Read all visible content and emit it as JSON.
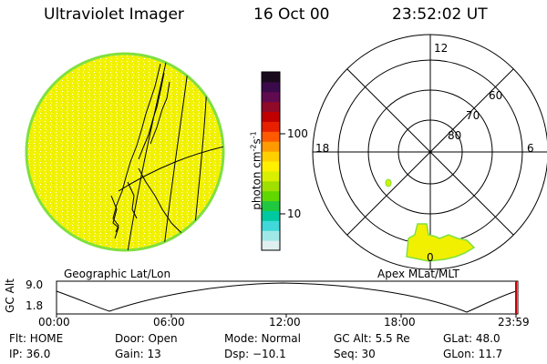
{
  "header": {
    "title": "Ultraviolet Imager",
    "date": "16 Oct 00",
    "time": "23:52:02 UT"
  },
  "colorbar": {
    "unit_label": "photon cm",
    "unit_exp1": "-2",
    "unit_s": "s",
    "unit_exp2": "-1",
    "ticks": [
      "100",
      "10"
    ],
    "colors": [
      "#1a0a1e",
      "#3a0a4a",
      "#600a50",
      "#900a2a",
      "#c00000",
      "#e82000",
      "#ff5a00",
      "#ff9a00",
      "#ffd000",
      "#fff000",
      "#d8f000",
      "#a0e000",
      "#60d800",
      "#20c840",
      "#00c8a0",
      "#40d8d8",
      "#a0e8e8",
      "#e0f0f0"
    ]
  },
  "left_panel": {
    "label": "Geographic Lat/Lon",
    "fill_color": "#f2f200",
    "edge_color": "#80e040"
  },
  "polar_plot": {
    "label": "Apex MLat/MLT",
    "mlt_labels": [
      "12",
      "18",
      "6",
      "0"
    ],
    "mlat_labels": [
      "60",
      "70",
      "80"
    ],
    "aurora_color": "#f0f000"
  },
  "timeline": {
    "ylabel": "GC Alt",
    "yticks": [
      "9.0",
      "1.8"
    ],
    "xticks": [
      "00:00",
      "06:00",
      "12:00",
      "18:00",
      "23:59"
    ],
    "marker_color": "#cc0000"
  },
  "info": {
    "flt": "Flt: HOME",
    "ip": "IP: 36.0",
    "door": "Door: Open",
    "gain": "Gain: 13",
    "mode": "Mode: Normal",
    "dsp": "Dsp:  −10.1",
    "gcalt": "GC Alt: 5.5 Re",
    "seq": "Seq: 30",
    "glat": "GLat:  48.0",
    "glon": "GLon:  11.7"
  }
}
